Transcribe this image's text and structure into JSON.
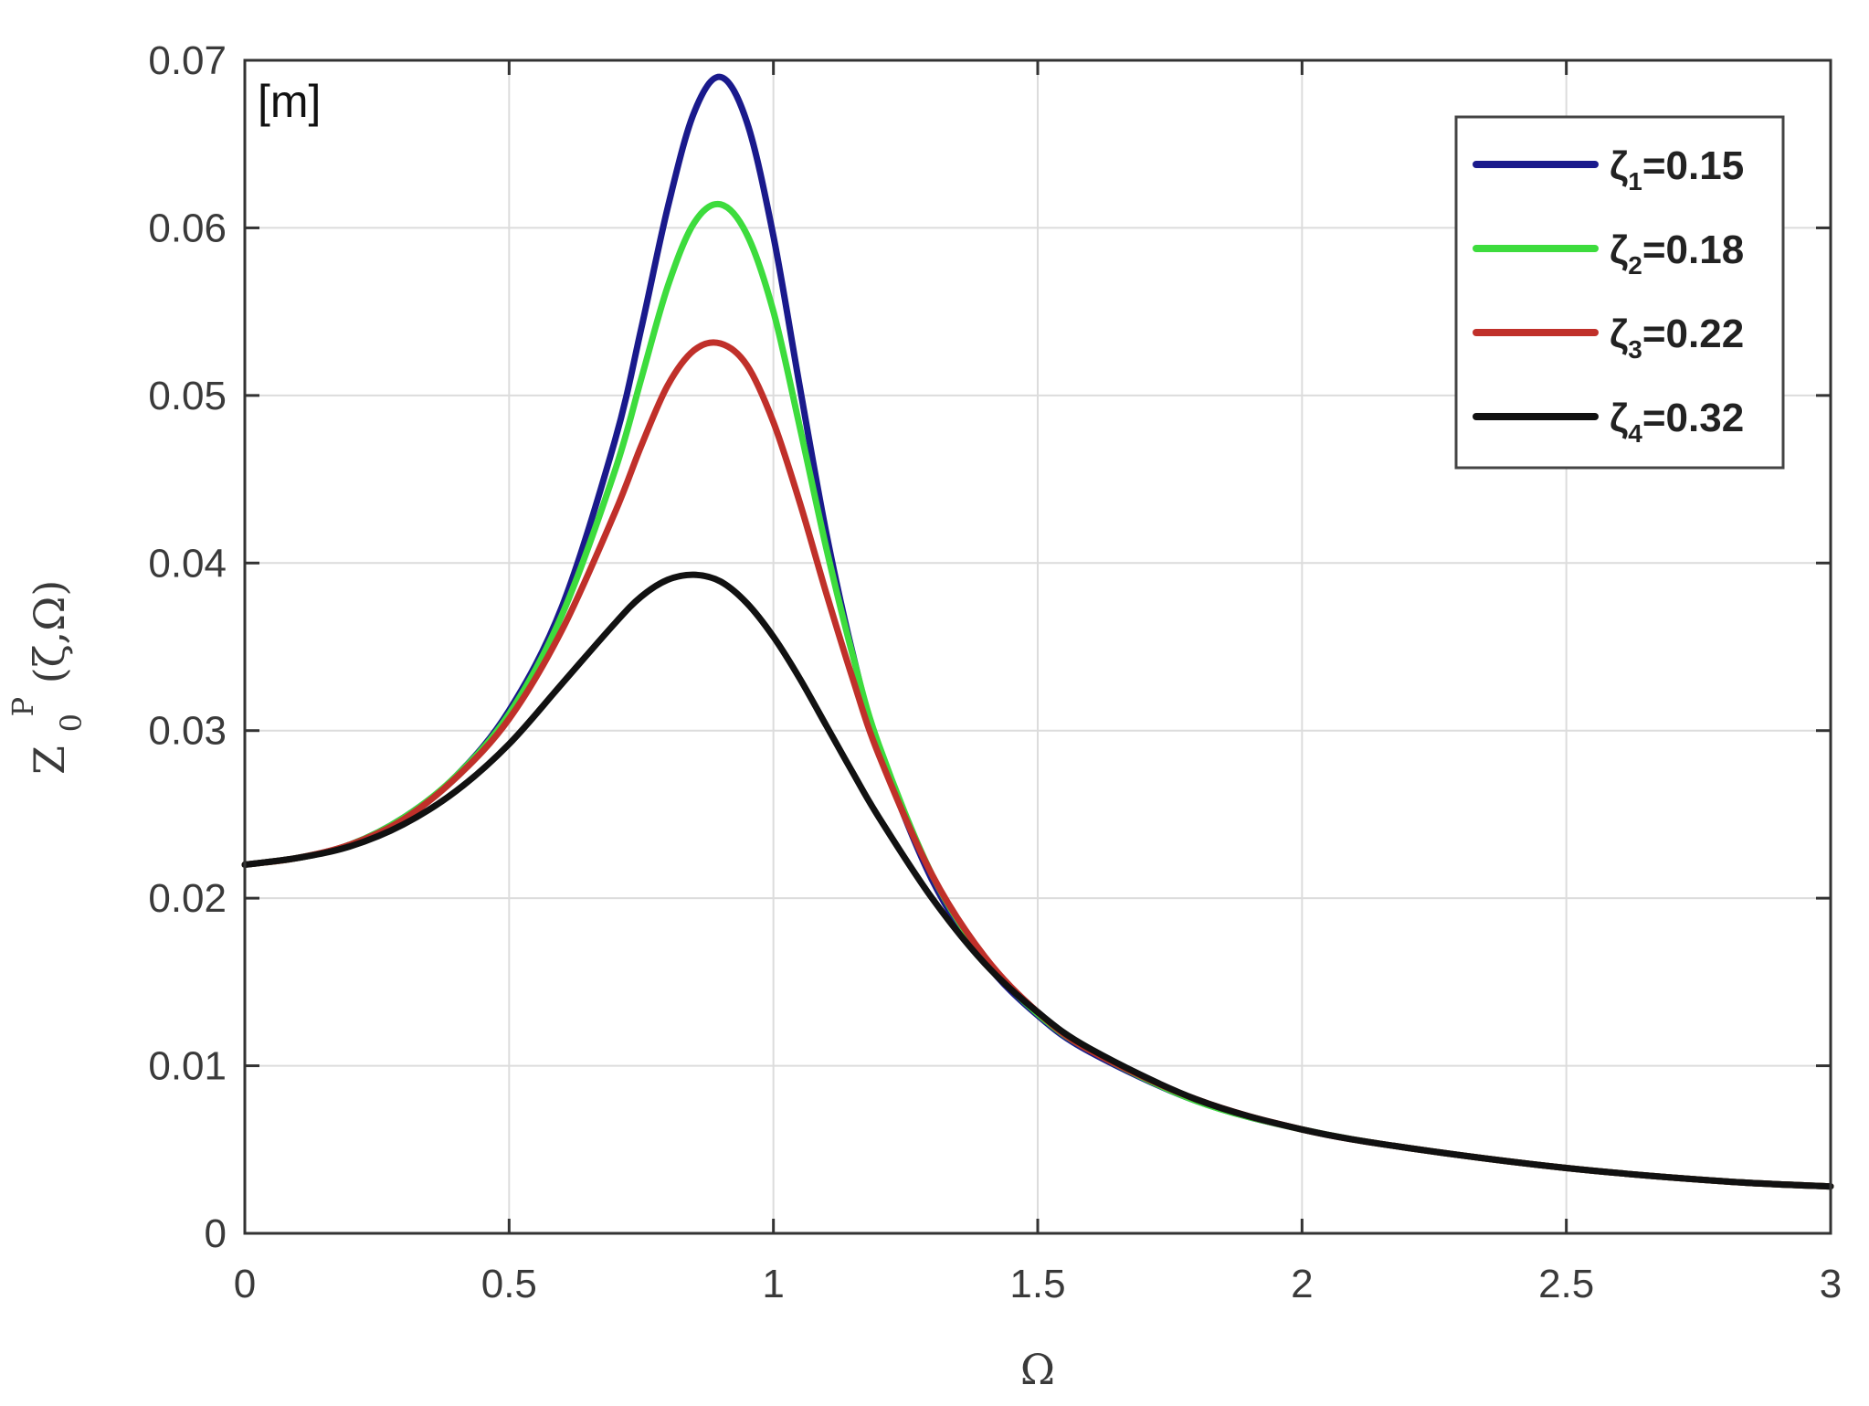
{
  "chart_data": {
    "type": "line",
    "title": "",
    "unit_label": "[m]",
    "xlabel": "Ω",
    "ylabel": "Z",
    "ylabel_sub": "0",
    "ylabel_sup": "P",
    "ylabel_args": "(ζ,Ω)",
    "xlim": [
      0,
      3
    ],
    "ylim": [
      0,
      0.07
    ],
    "xticks": [
      0,
      0.5,
      1,
      1.5,
      2,
      2.5,
      3
    ],
    "xtick_labels": [
      "0",
      "0.5",
      "1",
      "1.5",
      "2",
      "2.5",
      "3"
    ],
    "yticks": [
      0,
      0.01,
      0.02,
      0.03,
      0.04,
      0.05,
      0.06,
      0.07
    ],
    "ytick_labels": [
      "0",
      "0.01",
      "0.02",
      "0.03",
      "0.04",
      "0.05",
      "0.06",
      "0.07"
    ],
    "grid": true,
    "legend_position": "top-right",
    "x": [
      0,
      0.1,
      0.2,
      0.3,
      0.4,
      0.5,
      0.6,
      0.7,
      0.75,
      0.8,
      0.85,
      0.9,
      0.95,
      1.0,
      1.05,
      1.1,
      1.15,
      1.2,
      1.3,
      1.4,
      1.5,
      1.6,
      1.8,
      2.0,
      2.2,
      2.5,
      2.8,
      3.0
    ],
    "series": [
      {
        "name_main": "ζ",
        "name_sub": "1",
        "name_value": "=0.15",
        "color": "#1a1a8c",
        "values": [
          0.022,
          0.0224,
          0.0232,
          0.0248,
          0.0273,
          0.0312,
          0.0374,
          0.0473,
          0.054,
          0.0612,
          0.0669,
          0.069,
          0.0663,
          0.0595,
          0.0505,
          0.0418,
          0.0346,
          0.0289,
          0.0211,
          0.0162,
          0.013,
          0.0108,
          0.0079,
          0.0062,
          0.0051,
          0.0039,
          0.0031,
          0.0028
        ]
      },
      {
        "name_main": "ζ",
        "name_sub": "2",
        "name_value": "=0.18",
        "color": "#3ddc3d",
        "values": [
          0.022,
          0.0224,
          0.0232,
          0.0248,
          0.0273,
          0.031,
          0.0369,
          0.0455,
          0.051,
          0.0565,
          0.0603,
          0.0614,
          0.0596,
          0.055,
          0.0481,
          0.0409,
          0.0345,
          0.0291,
          0.0214,
          0.0164,
          0.0131,
          0.0109,
          0.0079,
          0.0062,
          0.0051,
          0.0039,
          0.0031,
          0.0028
        ]
      },
      {
        "name_main": "ζ",
        "name_sub": "3",
        "name_value": "=0.22",
        "color": "#c0302a",
        "values": [
          0.022,
          0.0224,
          0.0232,
          0.0247,
          0.0272,
          0.0307,
          0.036,
          0.043,
          0.047,
          0.0506,
          0.0527,
          0.0531,
          0.0518,
          0.0484,
          0.0436,
          0.0382,
          0.0331,
          0.0285,
          0.0214,
          0.0165,
          0.0132,
          0.0109,
          0.008,
          0.0062,
          0.0051,
          0.0039,
          0.0031,
          0.0028
        ]
      },
      {
        "name_main": "ζ",
        "name_sub": "4",
        "name_value": "=0.32",
        "color": "#111111",
        "values": [
          0.022,
          0.0224,
          0.0231,
          0.0244,
          0.0264,
          0.0292,
          0.0328,
          0.0364,
          0.038,
          0.039,
          0.0393,
          0.0389,
          0.0376,
          0.0356,
          0.0331,
          0.0303,
          0.0275,
          0.0248,
          0.02,
          0.0161,
          0.0132,
          0.011,
          0.008,
          0.0062,
          0.0051,
          0.0039,
          0.0031,
          0.0028
        ]
      }
    ]
  }
}
